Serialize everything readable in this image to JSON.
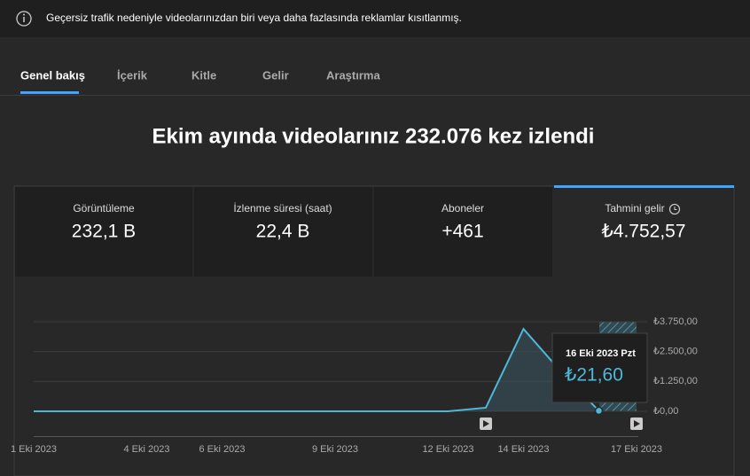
{
  "banner": {
    "text": "Geçersiz trafik nedeniyle videolarınızdan biri veya daha fazlasında reklamlar kısıtlanmış."
  },
  "tabs": [
    "Genel bakış",
    "İçerik",
    "Kitle",
    "Gelir",
    "Araştırma"
  ],
  "headline": "Ekim ayında videolarınız 232.076 kez izlendi",
  "stats": [
    {
      "label": "Görüntüleme",
      "value": "232,1 B"
    },
    {
      "label": "İzlenme süresi (saat)",
      "value": "22,4 B"
    },
    {
      "label": "Aboneler",
      "value": "+461"
    },
    {
      "label": "Tahmini gelir",
      "value": "₺4.752,57"
    }
  ],
  "chart_data": {
    "type": "line",
    "categories": [
      "1 Eki 2023",
      null,
      null,
      "4 Eki 2023",
      null,
      "6 Eki 2023",
      null,
      null,
      "9 Eki 2023",
      null,
      null,
      "12 Eki 2023",
      null,
      "14 Eki 2023",
      null,
      null,
      "17 Eki 2023"
    ],
    "values": [
      0,
      0,
      0,
      0,
      0,
      0,
      0,
      0,
      0,
      0,
      0,
      0,
      150,
      3450,
      1650,
      21.6,
      null
    ],
    "color": "#4fb8d8",
    "ylim": [
      0,
      3750
    ],
    "yticks": [
      {
        "value": 0,
        "label": "₺0,00"
      },
      {
        "value": 1250,
        "label": "₺1.250,00"
      },
      {
        "value": 2500,
        "label": "₺2.500,00"
      },
      {
        "value": 3750,
        "label": "₺3.750,00"
      }
    ],
    "grid": true,
    "tooltip": {
      "title": "16 Eki 2023 Pzt",
      "label": "₺21,60"
    }
  }
}
